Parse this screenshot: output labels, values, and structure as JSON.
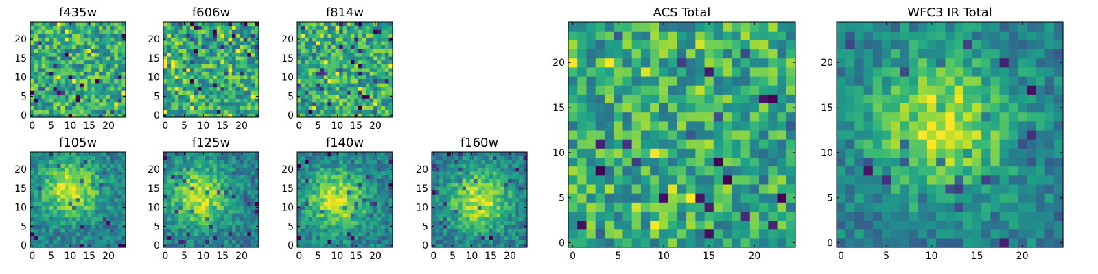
{
  "figure_title": "",
  "chart_data": [
    {
      "id": "f435w",
      "type": "heatmap",
      "title": "f435w",
      "grid_size": 25,
      "xlim": [
        0,
        24
      ],
      "ylim": [
        0,
        24
      ],
      "xticks": [
        0,
        5,
        10,
        15,
        20
      ],
      "yticks": [
        0,
        5,
        10,
        15,
        20
      ],
      "colormap": "viridis",
      "pattern": "noise",
      "seed": 11
    },
    {
      "id": "f606w",
      "type": "heatmap",
      "title": "f606w",
      "grid_size": 25,
      "xlim": [
        0,
        24
      ],
      "ylim": [
        0,
        24
      ],
      "xticks": [
        0,
        5,
        10,
        15,
        20
      ],
      "yticks": [
        0,
        5,
        10,
        15,
        20
      ],
      "colormap": "viridis",
      "pattern": "noise",
      "seed": 23
    },
    {
      "id": "f814w",
      "type": "heatmap",
      "title": "f814w",
      "grid_size": 25,
      "xlim": [
        0,
        24
      ],
      "ylim": [
        0,
        24
      ],
      "xticks": [
        0,
        5,
        10,
        15,
        20
      ],
      "yticks": [
        0,
        5,
        10,
        15,
        20
      ],
      "colormap": "viridis",
      "pattern": "noise",
      "seed": 37
    },
    {
      "id": "f105w",
      "type": "heatmap",
      "title": "f105w",
      "grid_size": 25,
      "xlim": [
        0,
        24
      ],
      "ylim": [
        0,
        24
      ],
      "xticks": [
        0,
        5,
        10,
        15,
        20
      ],
      "yticks": [
        0,
        5,
        10,
        15,
        20
      ],
      "colormap": "viridis",
      "pattern": "source",
      "source_center": [
        10,
        15
      ],
      "seed": 41
    },
    {
      "id": "f125w",
      "type": "heatmap",
      "title": "f125w",
      "grid_size": 25,
      "xlim": [
        0,
        24
      ],
      "ylim": [
        0,
        24
      ],
      "xticks": [
        0,
        5,
        10,
        15,
        20
      ],
      "yticks": [
        0,
        5,
        10,
        15,
        20
      ],
      "colormap": "viridis",
      "pattern": "source",
      "source_center": [
        9,
        13
      ],
      "seed": 53
    },
    {
      "id": "f140w",
      "type": "heatmap",
      "title": "f140w",
      "grid_size": 25,
      "xlim": [
        0,
        24
      ],
      "ylim": [
        0,
        24
      ],
      "xticks": [
        0,
        5,
        10,
        15,
        20
      ],
      "yticks": [
        0,
        5,
        10,
        15,
        20
      ],
      "colormap": "viridis",
      "pattern": "source",
      "source_center": [
        10,
        12
      ],
      "seed": 67
    },
    {
      "id": "f160w",
      "type": "heatmap",
      "title": "f160w",
      "grid_size": 25,
      "xlim": [
        0,
        24
      ],
      "ylim": [
        0,
        24
      ],
      "xticks": [
        0,
        5,
        10,
        15,
        20
      ],
      "yticks": [
        0,
        5,
        10,
        15,
        20
      ],
      "colormap": "viridis",
      "pattern": "source",
      "source_center": [
        12,
        12
      ],
      "seed": 79
    },
    {
      "id": "acs_total",
      "type": "heatmap",
      "title": "ACS Total",
      "grid_size": 25,
      "xlim": [
        0,
        24
      ],
      "ylim": [
        0,
        24
      ],
      "xticks": [
        0,
        5,
        10,
        15,
        20
      ],
      "yticks": [
        0,
        5,
        10,
        15,
        20
      ],
      "colormap": "viridis",
      "pattern": "noise",
      "seed": 97
    },
    {
      "id": "wfc3_ir_total",
      "type": "heatmap",
      "title": "WFC3 IR Total",
      "grid_size": 25,
      "xlim": [
        0,
        24
      ],
      "ylim": [
        0,
        24
      ],
      "xticks": [
        0,
        5,
        10,
        15,
        20
      ],
      "yticks": [
        0,
        5,
        10,
        15,
        20
      ],
      "colormap": "viridis",
      "pattern": "source",
      "source_center": [
        11,
        13
      ],
      "seed": 101
    }
  ]
}
